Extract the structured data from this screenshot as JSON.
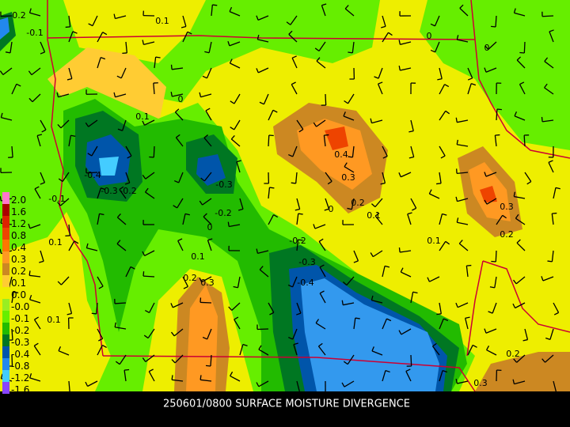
{
  "title": "250601/0800 SURFACE MOISTURE DIVERGENCE",
  "legend": [
    {
      "label": "2.0",
      "color": "#ff77cc"
    },
    {
      "label": "1.6",
      "color": "#aa0000"
    },
    {
      "label": "1.2",
      "color": "#dd2200"
    },
    {
      "label": "0.8",
      "color": "#ee4400"
    },
    {
      "label": "0.4",
      "color": "#ff7700"
    },
    {
      "label": "0.3",
      "color": "#ff9922"
    },
    {
      "label": "0.2",
      "color": "#cc8822"
    },
    {
      "label": "0.1",
      "color": "#ffcc33"
    },
    {
      "label": "0.0",
      "color": "#eeee00"
    },
    {
      "label": "-0.0",
      "color": "#99ee22"
    },
    {
      "label": "-0.1",
      "color": "#66ee00"
    },
    {
      "label": "-0.2",
      "color": "#22bb00"
    },
    {
      "label": "-0.3",
      "color": "#007722"
    },
    {
      "label": "-0.4",
      "color": "#0055aa"
    },
    {
      "label": "-0.8",
      "color": "#2288ee"
    },
    {
      "label": "-1.2",
      "color": "#44ccff"
    },
    {
      "label": "-1.6",
      "color": "#8844ff"
    }
  ],
  "contour_labels": [
    "-0.2",
    "-0.1",
    "0.1",
    "0.1",
    "0",
    "-0.4",
    "-0.3",
    "-0.2",
    "-0.1",
    "-0.3",
    "-0.2",
    "0",
    "0.1",
    "0.1",
    "0.2",
    "0.3",
    "-0.2",
    "-0.3",
    "-0.4",
    "0.1",
    "0.4",
    "0.3",
    "0.2",
    "0",
    "0.1",
    "0.1",
    "0.3",
    "0.2",
    "0",
    "0",
    "0.2",
    "0.3"
  ]
}
